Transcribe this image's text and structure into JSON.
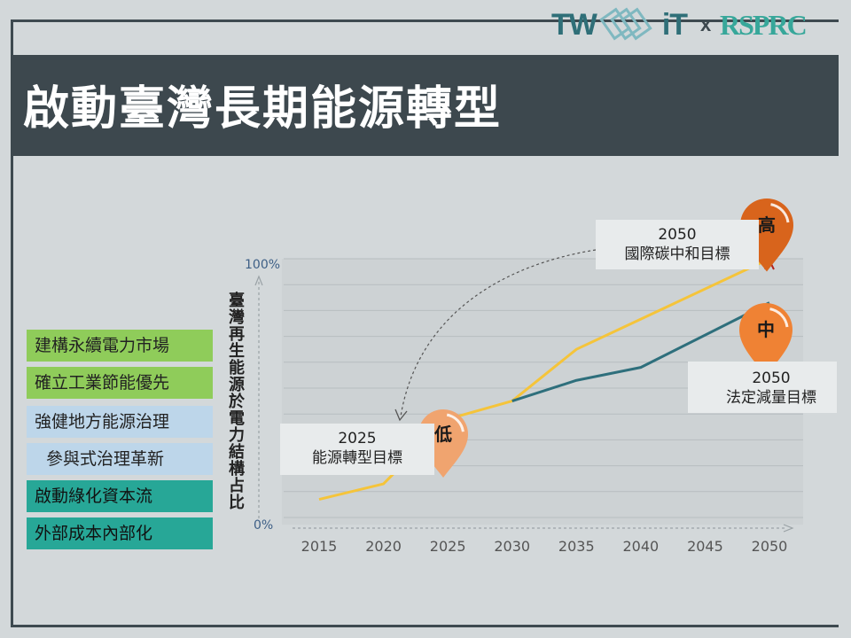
{
  "slide": {
    "title": "啟動臺灣長期能源轉型"
  },
  "logos": {
    "left": "TW",
    "left_suffix": "iT",
    "cross": "x",
    "right": "RSPRC"
  },
  "sidebar": {
    "items": [
      {
        "label": "建構永續電力市場",
        "style": "green"
      },
      {
        "label": "確立工業節能優先",
        "style": "green"
      },
      {
        "label": "強健地方能源治理",
        "style": "blue"
      },
      {
        "label": "參與式治理革新",
        "style": "blue"
      },
      {
        "label": "啟動綠化資本流",
        "style": "teal"
      },
      {
        "label": "外部成本內部化",
        "style": "teal"
      }
    ]
  },
  "colors": {
    "background": "#d3d8da",
    "titlebar": "#3d484e",
    "yellow_line": "#f5c43a",
    "teal_line": "#2e6f7c",
    "pin_low": "#f0a46f",
    "pin_mid": "#ef8234",
    "pin_high": "#d8641c",
    "grid": "#b7bdc0"
  },
  "chart_data": {
    "type": "line",
    "ylabel": "臺灣再生能源於電力結構占比",
    "x": [
      "2015",
      "2020",
      "2025",
      "2030",
      "2035",
      "2040",
      "2045",
      "2050"
    ],
    "yticks": [
      "100%",
      "0%"
    ],
    "ylim": [
      0,
      100
    ],
    "series": [
      {
        "values": [
          7,
          13,
          38,
          45,
          65,
          null,
          null,
          100
        ]
      },
      {
        "values": [
          null,
          null,
          null,
          45,
          53,
          58,
          null,
          83
        ]
      }
    ],
    "annotations": [
      {
        "year": "2025",
        "text": "能源轉型目標",
        "pin": "低"
      },
      {
        "year": "2050",
        "text": "國際碳中和目標",
        "pin": "高"
      },
      {
        "year": "2050",
        "text": "法定減量目標",
        "pin": "中"
      }
    ]
  }
}
